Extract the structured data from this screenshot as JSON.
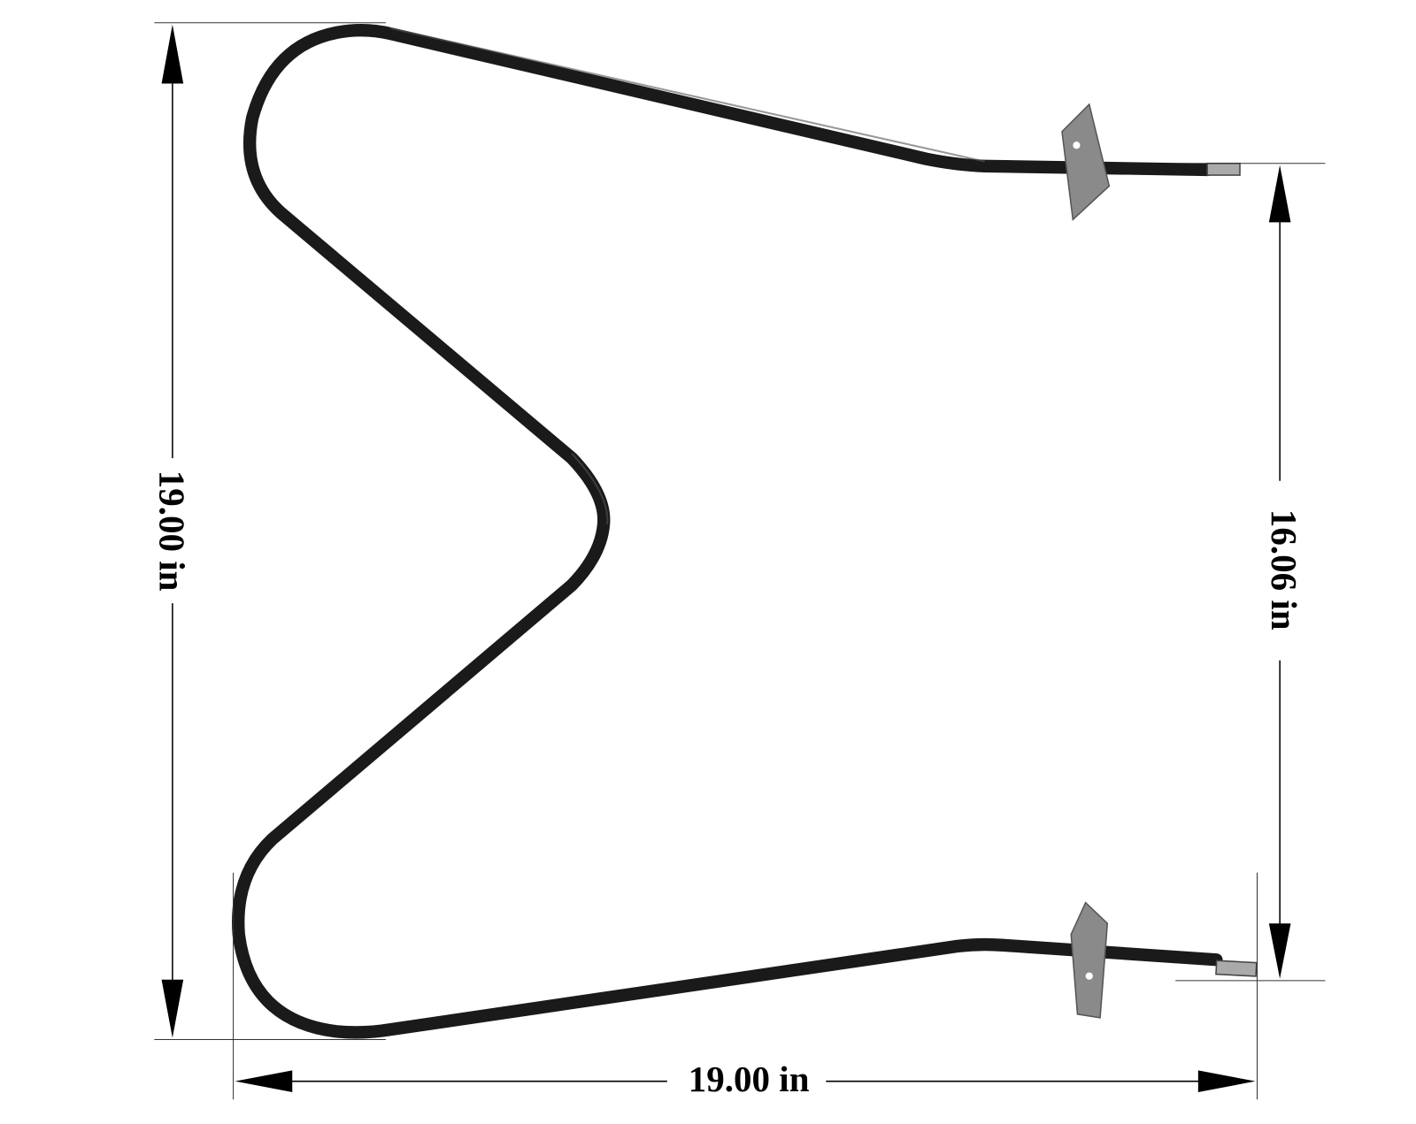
{
  "dimensions": {
    "height": "19.00 in",
    "terminal_span": "16.06 in",
    "width": "19.00 in"
  }
}
